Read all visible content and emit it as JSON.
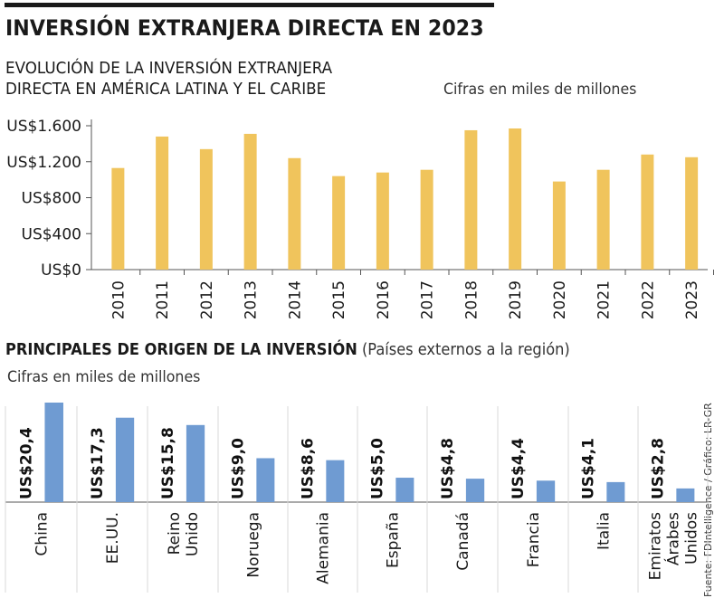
{
  "headline": "INVERSIÓN EXTRANJERA DIRECTA EN 2023",
  "colors": {
    "gold": "#f0c45c",
    "blue": "#6f9bd2",
    "axis": "#555555",
    "grid": "#d8d8d8"
  },
  "source_note": "Fuente: FDIntelligence / Gráfico: LR-GR",
  "chart_data": [
    {
      "type": "bar",
      "title_lines": [
        "EVOLUCIÓN DE LA INVERSIÓN EXTRANJERA",
        "DIRECTA EN AMÉRICA LATINA Y EL CARIBE"
      ],
      "units": "Cifras en miles de millones",
      "categories": [
        "2010",
        "2011",
        "2012",
        "2013",
        "2014",
        "2015",
        "2016",
        "2017",
        "2018",
        "2019",
        "2020",
        "2021",
        "2022",
        "2023"
      ],
      "values": [
        1130,
        1480,
        1340,
        1510,
        1240,
        1040,
        1080,
        1110,
        1550,
        1570,
        980,
        1110,
        1280,
        1250
      ],
      "ylim": [
        0,
        1600
      ],
      "yticks": [
        0,
        400,
        800,
        1200,
        1600
      ],
      "ytick_labels": [
        "US$0",
        "US$400",
        "US$800",
        "US$1.200",
        "US$1.600"
      ],
      "grid": false
    },
    {
      "type": "bar",
      "title_bold": "PRINCIPALES DE ORIGEN DE LA INVERSIÓN",
      "title_note": "(Países externos a la región)",
      "units": "Cifras en miles de millones",
      "categories": [
        [
          "China"
        ],
        [
          "EE.UU."
        ],
        [
          "Reino",
          "Unido"
        ],
        [
          "Noruega"
        ],
        [
          "Alemania"
        ],
        [
          "España"
        ],
        [
          "Canadá"
        ],
        [
          "Francia"
        ],
        [
          "Italia"
        ],
        [
          "Emiratos",
          "Árabes",
          "Unidos"
        ]
      ],
      "values": [
        20.4,
        17.3,
        15.8,
        9.0,
        8.6,
        5.0,
        4.8,
        4.4,
        4.1,
        2.8
      ],
      "value_labels": [
        "US$20,4",
        "US$17,3",
        "US$15,8",
        "US$9,0",
        "US$8,6",
        "US$5,0",
        "US$4,8",
        "US$4,4",
        "US$4,1",
        "US$2,8"
      ],
      "grid": false
    }
  ]
}
